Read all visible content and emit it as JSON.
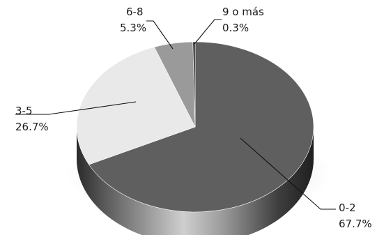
{
  "chart_data": {
    "type": "pie",
    "title": "",
    "style": "3d-tilted",
    "slices": [
      {
        "label": "0-2",
        "value": 67.7,
        "value_label": "67.7%",
        "color": "#5f5f60"
      },
      {
        "label": "3-5",
        "value": 26.7,
        "value_label": "26.7%",
        "color": "#e9e9e9"
      },
      {
        "label": "6-8",
        "value": 5.3,
        "value_label": "5.3%",
        "color": "#9a9a9a"
      },
      {
        "label": "9 o más",
        "value": 0.3,
        "value_label": "0.3%",
        "color": "#2a2a2a"
      }
    ]
  }
}
